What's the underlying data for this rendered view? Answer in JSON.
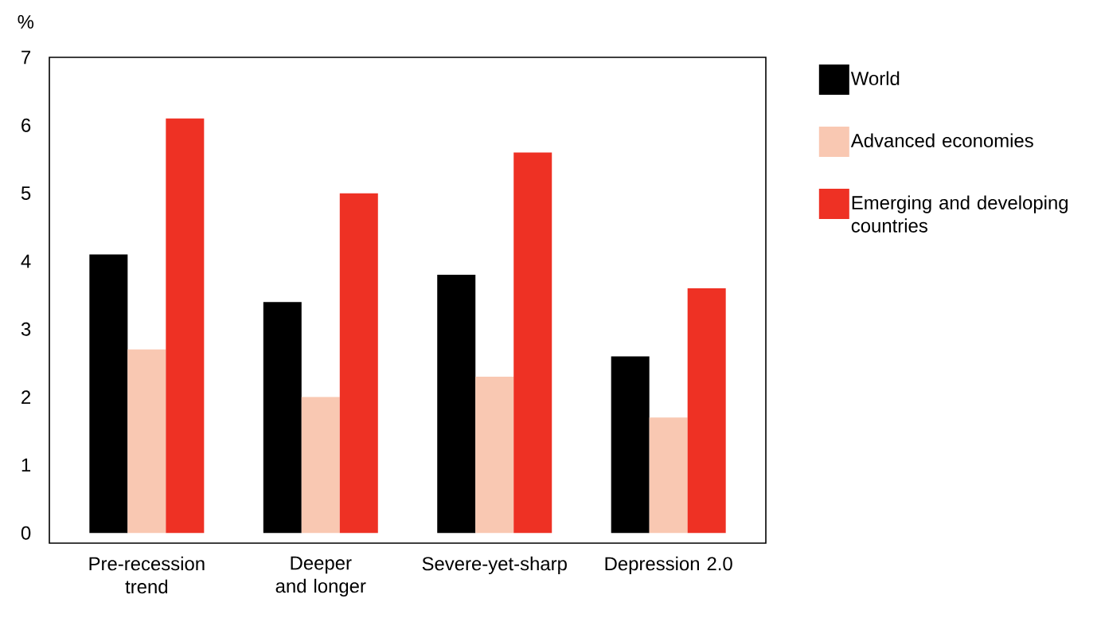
{
  "chart_data": {
    "type": "bar",
    "ylabel": "%",
    "categories": [
      "Pre-recession trend",
      "Deeper and longer",
      "Severe-yet-sharp",
      "Depression 2.0"
    ],
    "series": [
      {
        "name": "World",
        "color": "#000000",
        "values": [
          4.1,
          3.4,
          3.8,
          2.6
        ]
      },
      {
        "name": "Advanced economies",
        "color": "#f9c8b2",
        "values": [
          2.7,
          2.0,
          2.3,
          1.7
        ]
      },
      {
        "name": "Emerging and developing countries",
        "color": "#ee3124",
        "values": [
          6.1,
          5.0,
          5.6,
          3.6
        ]
      }
    ],
    "ylim": [
      -0.15,
      7
    ],
    "yticks": [
      0,
      1,
      2,
      3,
      4,
      5,
      6,
      7
    ],
    "grid": false,
    "legend": "right"
  }
}
